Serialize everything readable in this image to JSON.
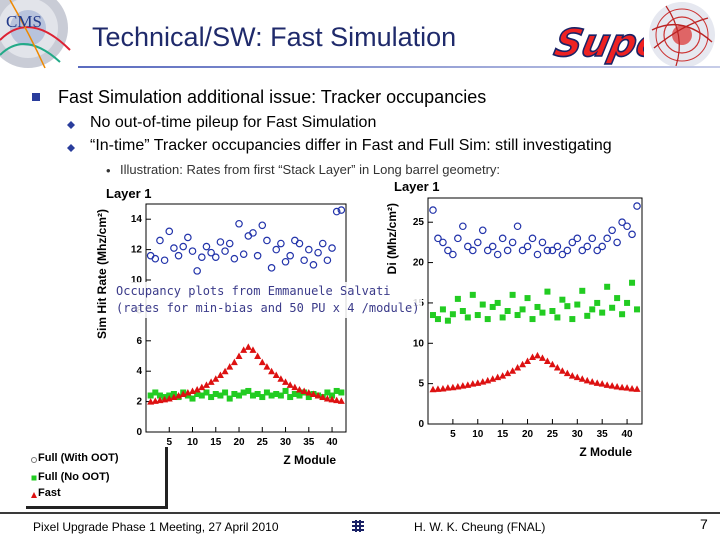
{
  "slide": {
    "title": "Technical/SW: Fast Simulation",
    "cms_logo_text": "CMS",
    "super_logo_text": "Super",
    "bullet_main": "Fast Simulation additional issue: Tracker occupancies",
    "bullet_sub_1": "No out-of-time pileup for Fast Simulation",
    "bullet_sub_2": "“In-time” Tracker occupancies differ in Fast and Full Sim: still investigating",
    "bullet_sub_3": "Illustration: Rates from first “Stack Layer” in Long barrel geometry:",
    "overlay_line_1": "Occupancy plots from Emmanuele Salvati",
    "overlay_line_2": "(rates for min-bias and 50 PU x 4 /module)",
    "legend": [
      "Full (With OOT)",
      "Full (No OOT)",
      "Fast"
    ],
    "footer_left": "Pixel Upgrade Phase 1 Meeting, 27 April 2010",
    "footer_mid": "H. W. K. Cheung (FNAL)",
    "page_number": "7",
    "colors": {
      "title": "#1f2a6b",
      "bullet": "#2a3d9c",
      "full_oot": "#2233aa",
      "full_no_oot": "#22cc22",
      "fast": "#dd1111"
    },
    "icons": [
      "cms-logo-icon",
      "super-logo-icon",
      "event-display-icon",
      "fermilab-icon"
    ]
  },
  "chart_data": [
    {
      "type": "scatter",
      "title": "Layer 1",
      "xlabel": "Z Module",
      "ylabel": "Sim Hit Rate (Mhz/cm²)",
      "xlim": [
        0,
        43
      ],
      "ylim": [
        0,
        15
      ],
      "xticks": [
        5,
        10,
        15,
        20,
        25,
        30,
        35,
        40
      ],
      "yticks": [
        0,
        2,
        4,
        6,
        8,
        10,
        12,
        14
      ],
      "series": [
        {
          "name": "Full (With OOT)",
          "marker": "open-circle",
          "color": "#2233aa",
          "x": [
            1,
            2,
            3,
            4,
            5,
            6,
            7,
            8,
            9,
            10,
            11,
            12,
            13,
            14,
            15,
            16,
            17,
            18,
            19,
            20,
            21,
            22,
            23,
            24,
            25,
            26,
            27,
            28,
            29,
            30,
            31,
            32,
            33,
            34,
            35,
            36,
            37,
            38,
            39,
            40,
            41,
            42
          ],
          "y": [
            11.6,
            11.4,
            12.6,
            11.3,
            13.2,
            12.1,
            11.6,
            12.2,
            12.8,
            11.9,
            10.6,
            11.5,
            12.2,
            11.8,
            11.5,
            12.5,
            11.9,
            12.4,
            11.4,
            13.7,
            11.7,
            12.9,
            13.1,
            11.6,
            13.6,
            12.6,
            10.8,
            12.0,
            12.4,
            11.2,
            11.6,
            12.6,
            12.4,
            11.3,
            12.0,
            11.0,
            11.8,
            12.4,
            11.3,
            12.1,
            14.5,
            14.6
          ]
        },
        {
          "name": "Full (No OOT)",
          "marker": "filled-square",
          "color": "#22cc22",
          "x": [
            1,
            2,
            3,
            4,
            5,
            6,
            7,
            8,
            9,
            10,
            11,
            12,
            13,
            14,
            15,
            16,
            17,
            18,
            19,
            20,
            21,
            22,
            23,
            24,
            25,
            26,
            27,
            28,
            29,
            30,
            31,
            32,
            33,
            34,
            35,
            36,
            37,
            38,
            39,
            40,
            41,
            42
          ],
          "y": [
            2.4,
            2.6,
            2.4,
            2.3,
            2.4,
            2.5,
            2.3,
            2.6,
            2.4,
            2.2,
            2.5,
            2.4,
            2.6,
            2.3,
            2.5,
            2.4,
            2.6,
            2.2,
            2.5,
            2.4,
            2.6,
            2.7,
            2.4,
            2.5,
            2.3,
            2.6,
            2.4,
            2.5,
            2.4,
            2.7,
            2.3,
            2.5,
            2.4,
            2.6,
            2.3,
            2.5,
            2.4,
            2.3,
            2.6,
            2.4,
            2.7,
            2.6
          ]
        },
        {
          "name": "Fast",
          "marker": "filled-triangle",
          "color": "#dd1111",
          "x": [
            1,
            2,
            3,
            4,
            5,
            6,
            7,
            8,
            9,
            10,
            11,
            12,
            13,
            14,
            15,
            16,
            17,
            18,
            19,
            20,
            21,
            22,
            23,
            24,
            25,
            26,
            27,
            28,
            29,
            30,
            31,
            32,
            33,
            34,
            35,
            36,
            37,
            38,
            39,
            40,
            41,
            42
          ],
          "y": [
            2.0,
            2.05,
            2.1,
            2.15,
            2.2,
            2.3,
            2.4,
            2.5,
            2.6,
            2.7,
            2.8,
            2.95,
            3.1,
            3.3,
            3.5,
            3.75,
            4.0,
            4.3,
            4.6,
            5.0,
            5.4,
            5.6,
            5.4,
            5.0,
            4.6,
            4.3,
            4.0,
            3.75,
            3.5,
            3.3,
            3.1,
            2.95,
            2.8,
            2.7,
            2.6,
            2.5,
            2.4,
            2.3,
            2.2,
            2.15,
            2.1,
            2.05
          ]
        }
      ]
    },
    {
      "type": "scatter",
      "title": "Layer 1",
      "xlabel": "Z Module",
      "ylabel": "Di (Mhz/cm²)",
      "xlim": [
        0,
        43
      ],
      "ylim": [
        0,
        28
      ],
      "xticks": [
        5,
        10,
        15,
        20,
        25,
        30,
        35,
        40
      ],
      "yticks": [
        0,
        5,
        10,
        15,
        20,
        25
      ],
      "series": [
        {
          "name": "Full (With OOT)",
          "marker": "open-circle",
          "color": "#2233aa",
          "x": [
            1,
            2,
            3,
            4,
            5,
            6,
            7,
            8,
            9,
            10,
            11,
            12,
            13,
            14,
            15,
            16,
            17,
            18,
            19,
            20,
            21,
            22,
            23,
            24,
            25,
            26,
            27,
            28,
            29,
            30,
            31,
            32,
            33,
            34,
            35,
            36,
            37,
            38,
            39,
            40,
            41,
            42
          ],
          "y": [
            26.5,
            23.0,
            22.5,
            21.5,
            21.0,
            23.0,
            24.5,
            22.0,
            21.5,
            22.5,
            24.0,
            21.5,
            22.0,
            21.0,
            23.0,
            21.5,
            22.5,
            24.5,
            21.5,
            22.0,
            23.0,
            21.0,
            22.5,
            21.5,
            21.5,
            22.0,
            21.0,
            21.5,
            22.5,
            23.0,
            21.5,
            22.0,
            23.0,
            21.5,
            22.0,
            23.0,
            24.0,
            22.5,
            25.0,
            24.5,
            23.5,
            27.0
          ]
        },
        {
          "name": "Full (No OOT)",
          "marker": "filled-square",
          "color": "#22cc22",
          "x": [
            1,
            2,
            3,
            4,
            5,
            6,
            7,
            8,
            9,
            10,
            11,
            12,
            13,
            14,
            15,
            16,
            17,
            18,
            19,
            20,
            21,
            22,
            23,
            24,
            25,
            26,
            27,
            28,
            29,
            30,
            31,
            32,
            33,
            34,
            35,
            36,
            37,
            38,
            39,
            40,
            41,
            42
          ],
          "y": [
            13.5,
            13.0,
            14.2,
            12.8,
            13.6,
            15.5,
            14.0,
            13.2,
            16.0,
            13.5,
            14.8,
            13.0,
            14.5,
            15.0,
            13.2,
            14.0,
            16.0,
            13.5,
            14.2,
            15.6,
            13.0,
            14.5,
            13.8,
            16.4,
            14.0,
            13.2,
            15.4,
            14.6,
            13.0,
            14.8,
            16.5,
            13.4,
            14.2,
            15.0,
            13.8,
            17.0,
            14.4,
            15.6,
            13.6,
            15.0,
            17.5,
            14.2
          ]
        },
        {
          "name": "Fast",
          "marker": "filled-triangle",
          "color": "#dd1111",
          "x": [
            1,
            2,
            3,
            4,
            5,
            6,
            7,
            8,
            9,
            10,
            11,
            12,
            13,
            14,
            15,
            16,
            17,
            18,
            19,
            20,
            21,
            22,
            23,
            24,
            25,
            26,
            27,
            28,
            29,
            30,
            31,
            32,
            33,
            34,
            35,
            36,
            37,
            38,
            39,
            40,
            41,
            42
          ],
          "y": [
            4.3,
            4.35,
            4.4,
            4.5,
            4.55,
            4.65,
            4.75,
            4.85,
            5.0,
            5.1,
            5.25,
            5.4,
            5.6,
            5.8,
            6.0,
            6.3,
            6.6,
            7.0,
            7.4,
            7.8,
            8.3,
            8.5,
            8.2,
            7.8,
            7.4,
            7.0,
            6.6,
            6.3,
            6.0,
            5.8,
            5.6,
            5.4,
            5.25,
            5.1,
            5.0,
            4.85,
            4.75,
            4.65,
            4.55,
            4.5,
            4.4,
            4.35
          ]
        }
      ]
    }
  ]
}
